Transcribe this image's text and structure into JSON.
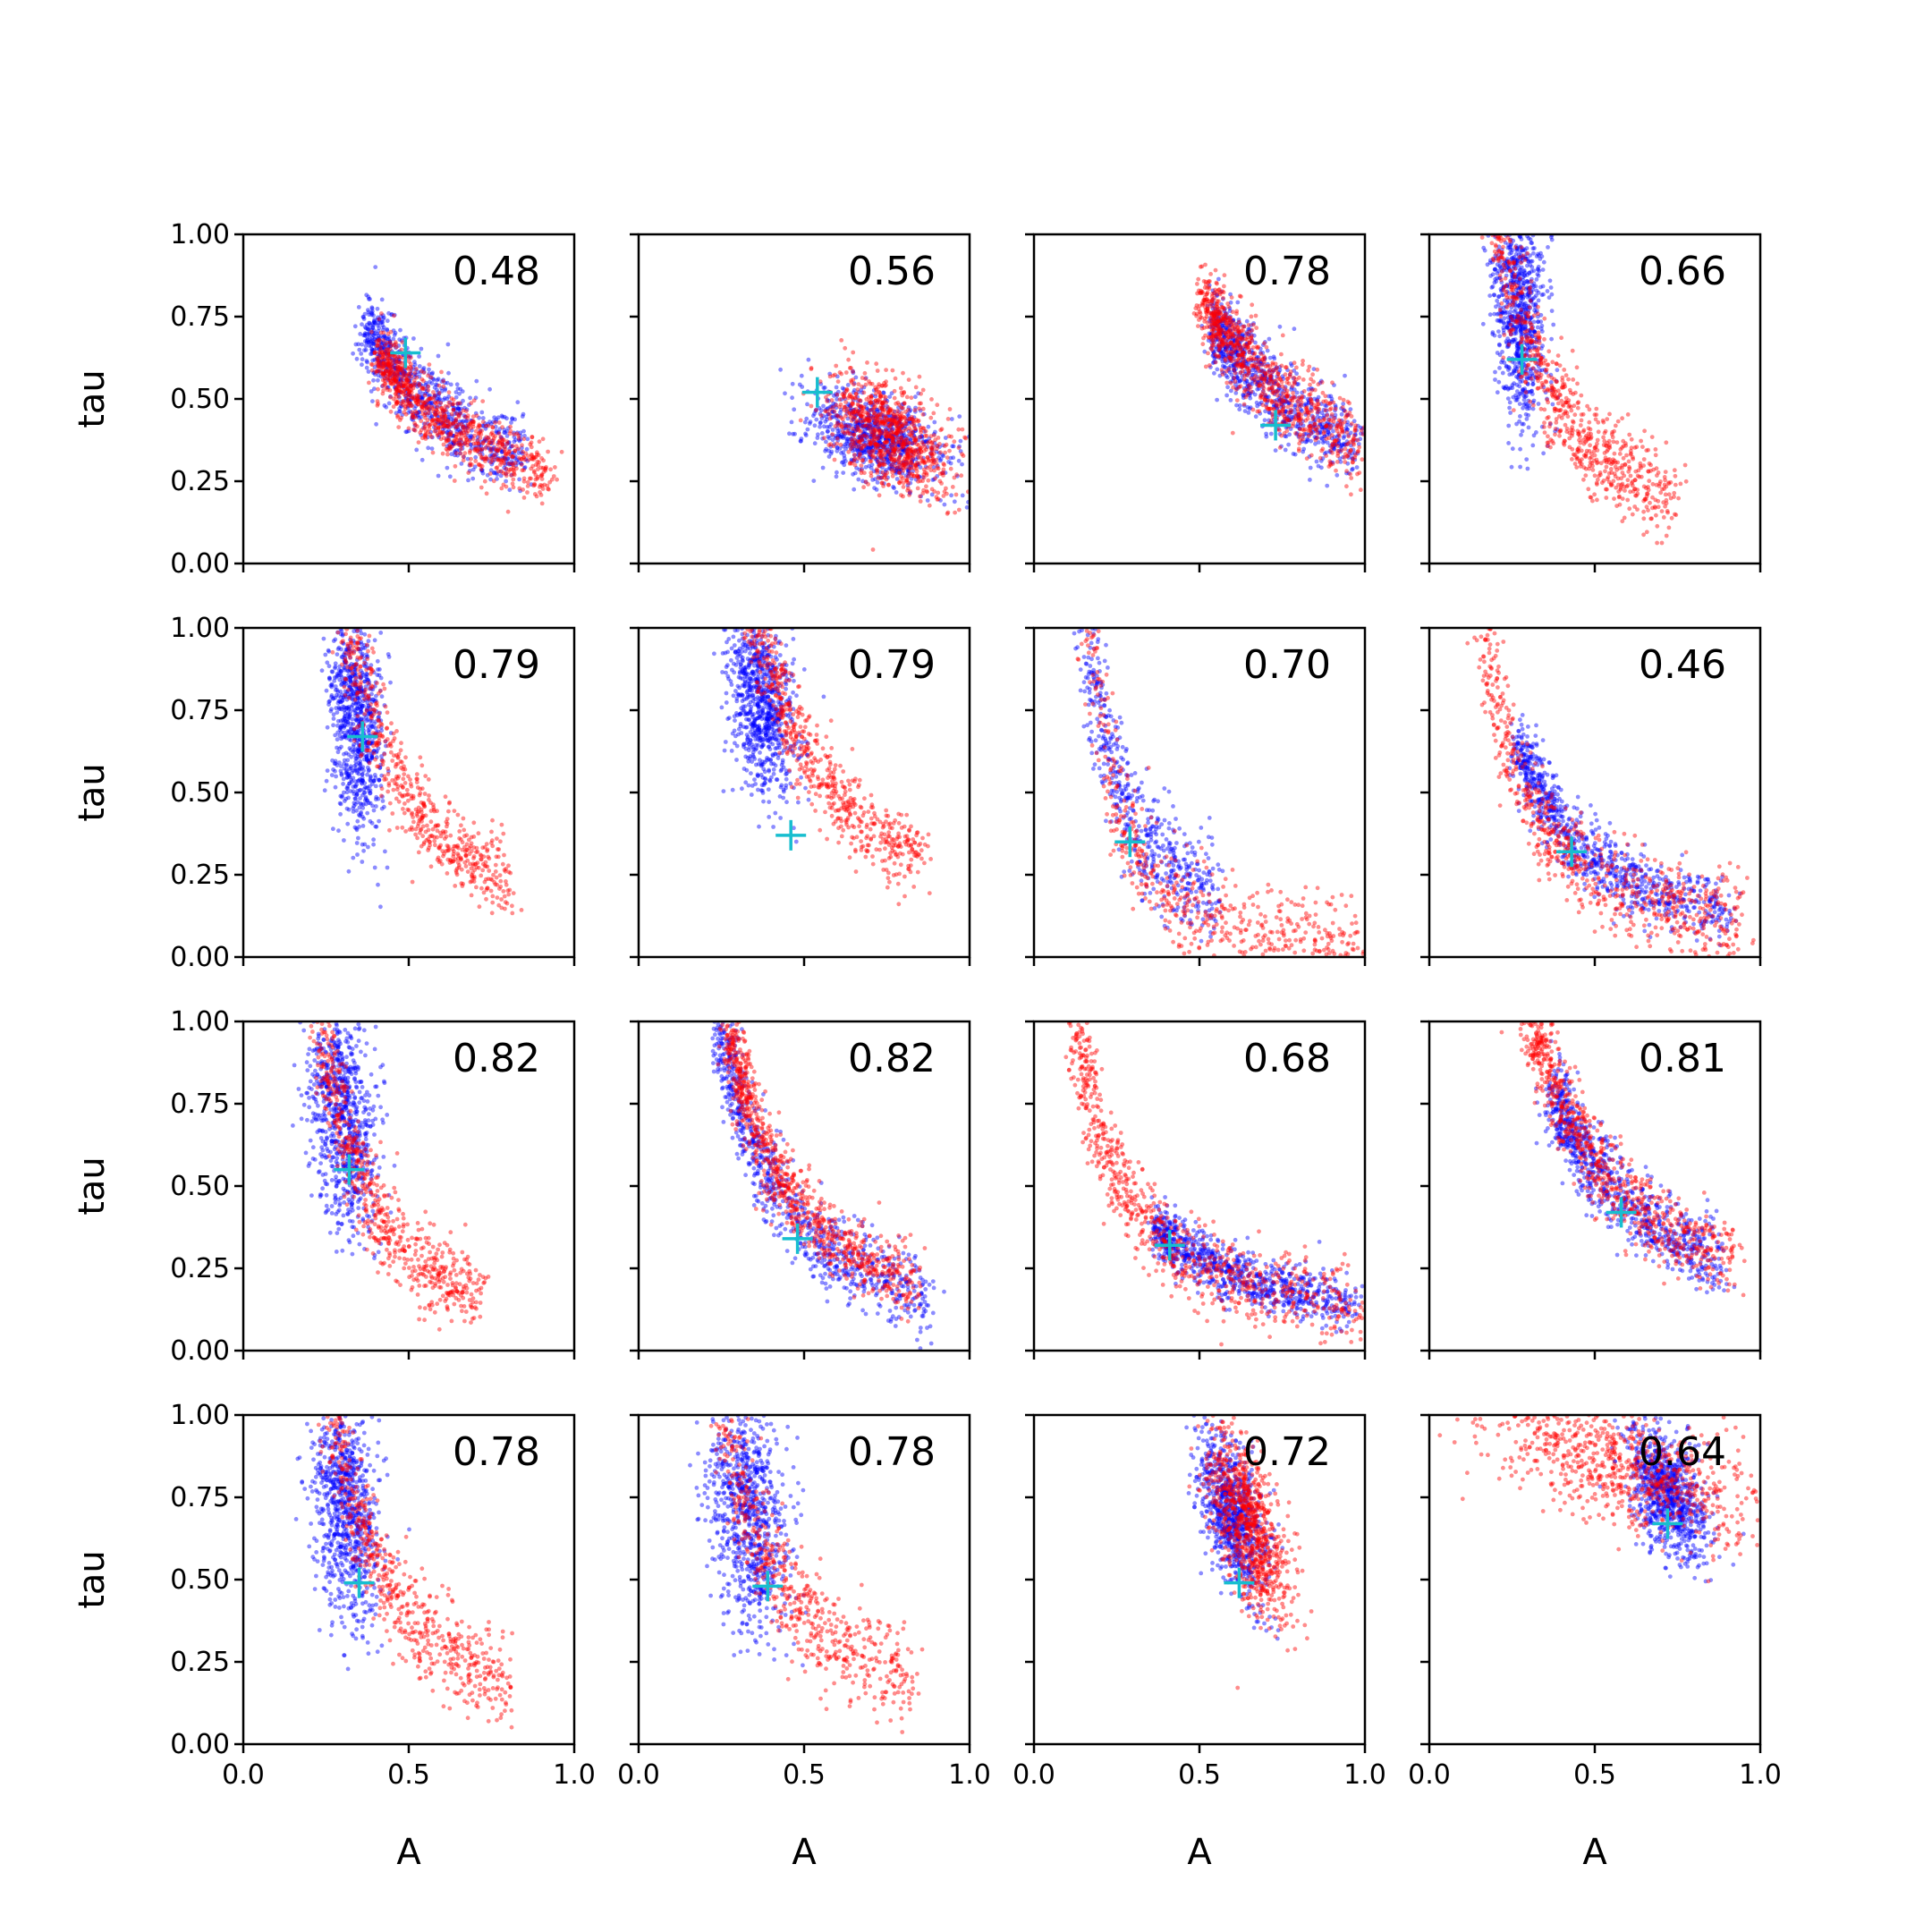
{
  "chart_data": {
    "type": "scatter",
    "layout": {
      "rows": 4,
      "cols": 4
    },
    "xlabel": "A",
    "ylabel": "tau",
    "xlim": [
      0,
      1
    ],
    "ylim": [
      0,
      1
    ],
    "xticks": [
      "0.0",
      "0.5",
      "1.0"
    ],
    "yticks": [
      "0.00",
      "0.25",
      "0.50",
      "0.75",
      "1.00"
    ],
    "colors": {
      "series_a": "#0000ff",
      "series_b": "#ff0000",
      "marker": "#17becf"
    },
    "panels": [
      {
        "value": "0.48",
        "marker": [
          0.49,
          0.64
        ],
        "clusters": [
          {
            "shape": "curve",
            "amin": 0.38,
            "amax": 0.85,
            "k": 0.27,
            "p": 1.0,
            "spread": 0.06
          },
          {
            "shape": "curve",
            "amin": 0.42,
            "amax": 0.92,
            "k": 0.26,
            "p": 1.0,
            "spread": 0.05
          }
        ]
      },
      {
        "value": "0.56",
        "marker": [
          0.54,
          0.52
        ],
        "clusters": [
          {
            "shape": "blob",
            "cx": 0.72,
            "cy": 0.38,
            "sx": 0.1,
            "sy": 0.07,
            "rho": -0.4
          },
          {
            "shape": "blob",
            "cx": 0.76,
            "cy": 0.39,
            "sx": 0.09,
            "sy": 0.09,
            "rho": -0.5
          }
        ]
      },
      {
        "value": "0.78",
        "marker": [
          0.73,
          0.42
        ],
        "clusters": [
          {
            "shape": "curve",
            "amin": 0.55,
            "amax": 0.98,
            "k": 0.35,
            "p": 1.2,
            "spread": 0.06
          },
          {
            "shape": "curve",
            "amin": 0.52,
            "amax": 0.98,
            "k": 0.36,
            "p": 1.2,
            "spread": 0.06
          }
        ]
      },
      {
        "value": "0.66",
        "marker": [
          0.28,
          0.62
        ],
        "clusters": [
          {
            "shape": "blob",
            "cx": 0.27,
            "cy": 0.78,
            "sx": 0.04,
            "sy": 0.18,
            "rho": -0.3
          },
          {
            "shape": "curve",
            "amin": 0.18,
            "amax": 0.75,
            "k": 0.14,
            "p": 1.3,
            "spread": 0.07
          }
        ]
      },
      {
        "value": "0.79",
        "marker": [
          0.36,
          0.67
        ],
        "clusters": [
          {
            "shape": "blob",
            "cx": 0.34,
            "cy": 0.72,
            "sx": 0.04,
            "sy": 0.17,
            "rho": -0.3
          },
          {
            "shape": "curve",
            "amin": 0.22,
            "amax": 0.8,
            "k": 0.16,
            "p": 1.6,
            "spread": 0.06
          }
        ]
      },
      {
        "value": "0.79",
        "marker": [
          0.46,
          0.37
        ],
        "clusters": [
          {
            "shape": "blob",
            "cx": 0.37,
            "cy": 0.78,
            "sx": 0.05,
            "sy": 0.14,
            "rho": -0.3
          },
          {
            "shape": "curve",
            "amin": 0.28,
            "amax": 0.85,
            "k": 0.24,
            "p": 1.4,
            "spread": 0.06
          }
        ]
      },
      {
        "value": "0.70",
        "marker": [
          0.29,
          0.35
        ],
        "clusters": [
          {
            "shape": "curve",
            "amin": 0.05,
            "amax": 0.55,
            "k": 0.09,
            "p": 1.3,
            "spread": 0.08
          },
          {
            "shape": "curve",
            "amin": 0.02,
            "amax": 1.0,
            "k": 0.03,
            "p": 2.0,
            "spread": 0.07
          }
        ]
      },
      {
        "value": "0.46",
        "marker": [
          0.43,
          0.32
        ],
        "clusters": [
          {
            "shape": "curve",
            "amin": 0.28,
            "amax": 0.9,
            "k": 0.12,
            "p": 1.3,
            "spread": 0.05
          },
          {
            "shape": "curve",
            "amin": 0.12,
            "amax": 0.95,
            "k": 0.1,
            "p": 1.3,
            "spread": 0.07
          }
        ]
      },
      {
        "value": "0.82",
        "marker": [
          0.32,
          0.55
        ],
        "clusters": [
          {
            "shape": "blob",
            "cx": 0.3,
            "cy": 0.72,
            "sx": 0.05,
            "sy": 0.18,
            "rho": -0.3
          },
          {
            "shape": "curve",
            "amin": 0.17,
            "amax": 0.72,
            "k": 0.1,
            "p": 1.6,
            "spread": 0.06
          }
        ]
      },
      {
        "value": "0.82",
        "marker": [
          0.48,
          0.34
        ],
        "clusters": [
          {
            "shape": "curve",
            "amin": 0.25,
            "amax": 0.88,
            "k": 0.14,
            "p": 1.4,
            "spread": 0.06
          },
          {
            "shape": "curve",
            "amin": 0.28,
            "amax": 0.85,
            "k": 0.16,
            "p": 1.4,
            "spread": 0.05
          }
        ]
      },
      {
        "value": "0.68",
        "marker": [
          0.41,
          0.32
        ],
        "clusters": [
          {
            "shape": "curve",
            "amin": 0.38,
            "amax": 0.98,
            "k": 0.14,
            "p": 1.0,
            "spread": 0.04
          },
          {
            "shape": "curve",
            "amin": 0.12,
            "amax": 0.98,
            "k": 0.13,
            "p": 1.0,
            "spread": 0.06
          }
        ]
      },
      {
        "value": "0.81",
        "marker": [
          0.58,
          0.42
        ],
        "clusters": [
          {
            "shape": "curve",
            "amin": 0.38,
            "amax": 0.88,
            "k": 0.24,
            "p": 1.2,
            "spread": 0.06
          },
          {
            "shape": "curve",
            "amin": 0.3,
            "amax": 0.92,
            "k": 0.25,
            "p": 1.2,
            "spread": 0.06
          }
        ]
      },
      {
        "value": "0.78",
        "marker": [
          0.35,
          0.49
        ],
        "clusters": [
          {
            "shape": "blob",
            "cx": 0.31,
            "cy": 0.72,
            "sx": 0.05,
            "sy": 0.18,
            "rho": -0.3
          },
          {
            "shape": "curve",
            "amin": 0.18,
            "amax": 0.8,
            "k": 0.14,
            "p": 1.5,
            "spread": 0.07
          }
        ]
      },
      {
        "value": "0.78",
        "marker": [
          0.39,
          0.48
        ],
        "clusters": [
          {
            "shape": "blob",
            "cx": 0.33,
            "cy": 0.7,
            "sx": 0.06,
            "sy": 0.18,
            "rho": -0.3
          },
          {
            "shape": "curve",
            "amin": 0.15,
            "amax": 0.82,
            "k": 0.15,
            "p": 1.4,
            "spread": 0.08
          }
        ]
      },
      {
        "value": "0.72",
        "marker": [
          0.62,
          0.49
        ],
        "clusters": [
          {
            "shape": "blob",
            "cx": 0.6,
            "cy": 0.7,
            "sx": 0.05,
            "sy": 0.12,
            "rho": -0.5
          },
          {
            "shape": "blob",
            "cx": 0.65,
            "cy": 0.66,
            "sx": 0.06,
            "sy": 0.14,
            "rho": -0.6
          }
        ]
      },
      {
        "value": "0.64",
        "marker": [
          0.72,
          0.67
        ],
        "clusters": [
          {
            "shape": "blob",
            "cx": 0.72,
            "cy": 0.76,
            "sx": 0.06,
            "sy": 0.1,
            "rho": -0.5
          },
          {
            "shape": "blob",
            "cx": 0.6,
            "cy": 0.84,
            "sx": 0.22,
            "sy": 0.11,
            "rho": -0.6
          }
        ]
      }
    ]
  }
}
